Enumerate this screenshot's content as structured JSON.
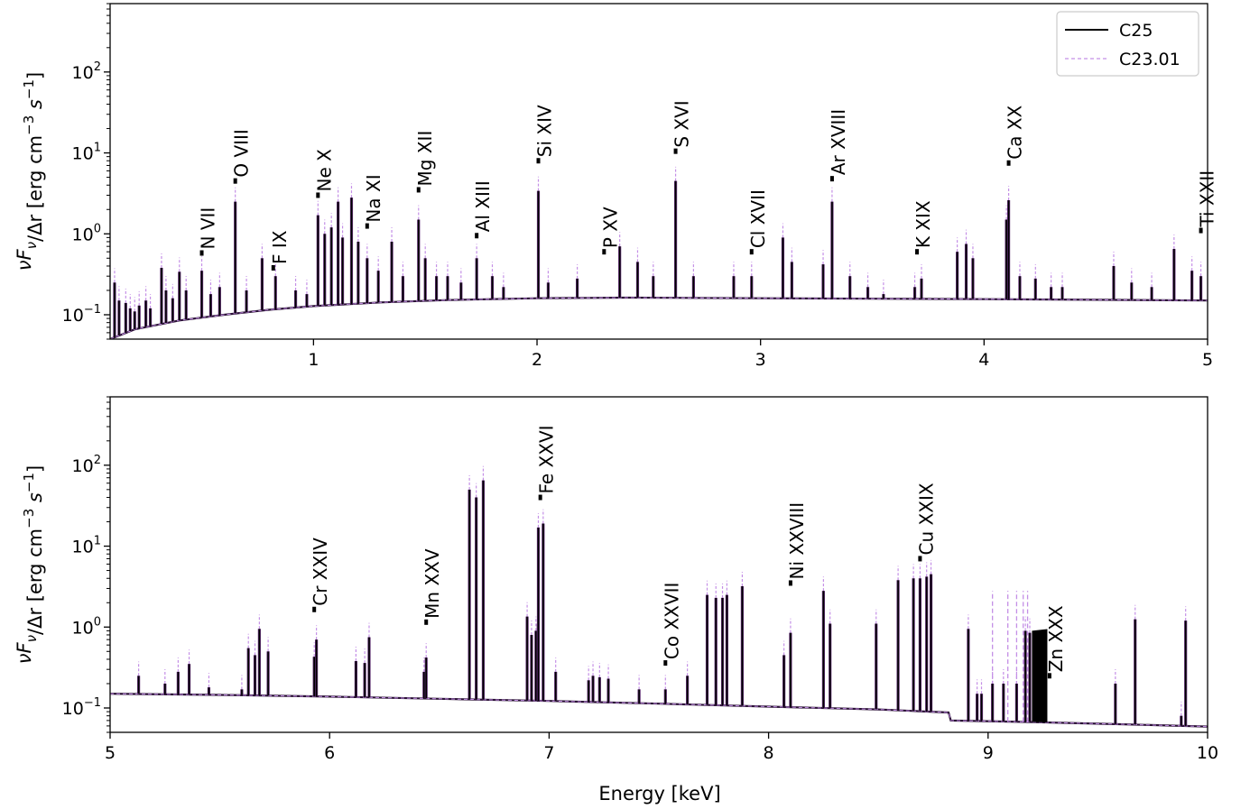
{
  "chart_data": [
    {
      "type": "line",
      "panel": "top",
      "xlabel": "",
      "ylabel_main": "νF",
      "ylabel_sub": "ν",
      "ylabel_rest": "/Δr [erg cm",
      "ylabel_exp1": "−3",
      "ylabel_mid": " s",
      "ylabel_exp2": "−1",
      "ylabel_end": "]",
      "xlim": [
        0.09,
        5.0
      ],
      "ylim": [
        0.05,
        700
      ],
      "yscale": "log",
      "grid": false,
      "xticks": [
        1,
        2,
        3,
        4,
        5
      ],
      "xtick_labels": [
        "1",
        "2",
        "3",
        "4",
        "5"
      ],
      "ytick_exponents": [
        -1,
        0,
        1,
        2
      ],
      "ytick_labels": [
        "10",
        "10",
        "10",
        "10"
      ],
      "ytick_label_exps": [
        "−1",
        "0",
        "1",
        "2"
      ],
      "legend": {
        "placement": "top-right",
        "entries": [
          {
            "name": "C25",
            "color": "#000000",
            "style": "solid"
          },
          {
            "name": "C23.01",
            "color": "#c48fe6",
            "style": "dashed"
          }
        ]
      },
      "continuum": [
        [
          0.09,
          0.05
        ],
        [
          0.2,
          0.066
        ],
        [
          0.4,
          0.085
        ],
        [
          0.6,
          0.1
        ],
        [
          0.8,
          0.115
        ],
        [
          1.0,
          0.128
        ],
        [
          1.3,
          0.142
        ],
        [
          1.6,
          0.152
        ],
        [
          2.0,
          0.16
        ],
        [
          2.4,
          0.163
        ],
        [
          2.6,
          0.162
        ],
        [
          3.0,
          0.16
        ],
        [
          3.5,
          0.158
        ],
        [
          4.0,
          0.156
        ],
        [
          4.5,
          0.153
        ],
        [
          5.0,
          0.15
        ]
      ],
      "lines": [
        [
          0.11,
          0.25
        ],
        [
          0.13,
          0.15
        ],
        [
          0.16,
          0.14
        ],
        [
          0.18,
          0.12
        ],
        [
          0.2,
          0.11
        ],
        [
          0.22,
          0.13
        ],
        [
          0.25,
          0.15
        ],
        [
          0.27,
          0.12
        ],
        [
          0.32,
          0.38
        ],
        [
          0.34,
          0.2
        ],
        [
          0.37,
          0.16
        ],
        [
          0.4,
          0.34
        ],
        [
          0.43,
          0.2
        ],
        [
          0.5,
          0.35
        ],
        [
          0.54,
          0.18
        ],
        [
          0.58,
          0.22
        ],
        [
          0.65,
          2.5
        ],
        [
          0.7,
          0.2
        ],
        [
          0.77,
          0.5
        ],
        [
          0.83,
          0.3
        ],
        [
          0.92,
          0.2
        ],
        [
          0.97,
          0.18
        ],
        [
          1.02,
          1.7
        ],
        [
          1.05,
          1.0
        ],
        [
          1.08,
          1.2
        ],
        [
          1.11,
          2.5
        ],
        [
          1.13,
          0.9
        ],
        [
          1.17,
          2.8
        ],
        [
          1.2,
          0.8
        ],
        [
          1.24,
          0.5
        ],
        [
          1.29,
          0.35
        ],
        [
          1.35,
          0.8
        ],
        [
          1.4,
          0.3
        ],
        [
          1.47,
          1.5
        ],
        [
          1.5,
          0.5
        ],
        [
          1.55,
          0.3
        ],
        [
          1.6,
          0.3
        ],
        [
          1.66,
          0.25
        ],
        [
          1.73,
          0.5
        ],
        [
          1.8,
          0.3
        ],
        [
          1.85,
          0.22
        ],
        [
          2.006,
          3.4
        ],
        [
          2.05,
          0.25
        ],
        [
          2.18,
          0.28
        ],
        [
          2.37,
          0.7
        ],
        [
          2.45,
          0.45
        ],
        [
          2.52,
          0.3
        ],
        [
          2.62,
          4.5
        ],
        [
          2.7,
          0.3
        ],
        [
          2.88,
          0.3
        ],
        [
          2.96,
          0.3
        ],
        [
          3.1,
          0.9
        ],
        [
          3.14,
          0.45
        ],
        [
          3.28,
          0.42
        ],
        [
          3.32,
          2.5
        ],
        [
          3.4,
          0.3
        ],
        [
          3.48,
          0.22
        ],
        [
          3.55,
          0.18
        ],
        [
          3.69,
          0.22
        ],
        [
          3.72,
          0.28
        ],
        [
          3.88,
          0.6
        ],
        [
          3.92,
          0.75
        ],
        [
          3.95,
          0.5
        ],
        [
          4.1,
          1.5
        ],
        [
          4.11,
          2.6
        ],
        [
          4.16,
          0.3
        ],
        [
          4.23,
          0.28
        ],
        [
          4.3,
          0.22
        ],
        [
          4.35,
          0.22
        ],
        [
          4.58,
          0.4
        ],
        [
          4.66,
          0.25
        ],
        [
          4.75,
          0.22
        ],
        [
          4.85,
          0.65
        ],
        [
          4.93,
          0.35
        ],
        [
          4.97,
          0.3
        ]
      ],
      "ions": [
        {
          "x": 0.5,
          "y": 0.58,
          "label": "N VII"
        },
        {
          "x": 0.65,
          "y": 4.5,
          "label": "O VIII"
        },
        {
          "x": 0.82,
          "y": 0.38,
          "label": "F IX"
        },
        {
          "x": 1.02,
          "y": 3.0,
          "label": "Ne X"
        },
        {
          "x": 1.24,
          "y": 1.25,
          "label": "Na XI"
        },
        {
          "x": 1.47,
          "y": 3.5,
          "label": "Mg XII"
        },
        {
          "x": 1.73,
          "y": 0.95,
          "label": "Al XIII"
        },
        {
          "x": 2.006,
          "y": 8.0,
          "label": "Si XIV"
        },
        {
          "x": 2.3,
          "y": 0.6,
          "label": "P XV"
        },
        {
          "x": 2.62,
          "y": 10.5,
          "label": "S XVI"
        },
        {
          "x": 2.96,
          "y": 0.6,
          "label": "Cl XVII"
        },
        {
          "x": 3.32,
          "y": 4.8,
          "label": "Ar XVIII"
        },
        {
          "x": 3.7,
          "y": 0.6,
          "label": "K XIX"
        },
        {
          "x": 4.11,
          "y": 7.5,
          "label": "Ca XX"
        },
        {
          "x": 4.97,
          "y": 1.1,
          "label": "Ti XXII"
        }
      ]
    },
    {
      "type": "line",
      "panel": "bottom",
      "xlabel": "Energy [keV]",
      "ylabel_main": "νF",
      "ylabel_sub": "ν",
      "ylabel_rest": "/Δr [erg cm",
      "ylabel_exp1": "−3",
      "ylabel_mid": " s",
      "ylabel_exp2": "−1",
      "ylabel_end": "]",
      "xlim": [
        5.0,
        10.0
      ],
      "ylim": [
        0.05,
        700
      ],
      "yscale": "log",
      "grid": false,
      "xticks": [
        5,
        6,
        7,
        8,
        9,
        10
      ],
      "xtick_labels": [
        "5",
        "6",
        "7",
        "8",
        "9",
        "10"
      ],
      "ytick_exponents": [
        -1,
        0,
        1,
        2
      ],
      "ytick_labels": [
        "10",
        "10",
        "10",
        "10"
      ],
      "ytick_label_exps": [
        "−1",
        "0",
        "1",
        "2"
      ],
      "continuum": [
        [
          5.0,
          0.15
        ],
        [
          5.5,
          0.145
        ],
        [
          6.0,
          0.138
        ],
        [
          6.5,
          0.13
        ],
        [
          7.0,
          0.122
        ],
        [
          7.5,
          0.113
        ],
        [
          8.0,
          0.104
        ],
        [
          8.5,
          0.096
        ],
        [
          8.65,
          0.092
        ],
        [
          8.82,
          0.088
        ],
        [
          8.83,
          0.07
        ],
        [
          9.2,
          0.067
        ],
        [
          9.6,
          0.063
        ],
        [
          10.0,
          0.059
        ]
      ],
      "lines": [
        [
          5.13,
          0.25
        ],
        [
          5.25,
          0.2
        ],
        [
          5.31,
          0.28
        ],
        [
          5.36,
          0.35
        ],
        [
          5.45,
          0.18
        ],
        [
          5.6,
          0.17
        ],
        [
          5.63,
          0.55
        ],
        [
          5.66,
          0.45
        ],
        [
          5.68,
          0.95
        ],
        [
          5.72,
          0.5
        ],
        [
          5.93,
          0.43
        ],
        [
          5.94,
          0.7
        ],
        [
          6.12,
          0.38
        ],
        [
          6.16,
          0.36
        ],
        [
          6.18,
          0.75
        ],
        [
          6.43,
          0.28
        ],
        [
          6.44,
          0.42
        ],
        [
          6.637,
          50
        ],
        [
          6.668,
          40
        ],
        [
          6.7,
          65
        ],
        [
          6.9,
          1.35
        ],
        [
          6.92,
          0.8
        ],
        [
          6.94,
          0.9
        ],
        [
          6.95,
          1.1
        ],
        [
          6.951,
          17
        ],
        [
          6.973,
          19
        ],
        [
          7.03,
          0.28
        ],
        [
          7.18,
          0.22
        ],
        [
          7.2,
          0.25
        ],
        [
          7.23,
          0.24
        ],
        [
          7.27,
          0.23
        ],
        [
          7.41,
          0.17
        ],
        [
          7.53,
          0.17
        ],
        [
          7.63,
          0.25
        ],
        [
          7.72,
          2.5
        ],
        [
          7.76,
          2.3
        ],
        [
          7.79,
          2.3
        ],
        [
          7.81,
          2.5
        ],
        [
          7.88,
          3.2
        ],
        [
          8.07,
          0.45
        ],
        [
          8.1,
          0.85
        ],
        [
          8.25,
          2.8
        ],
        [
          8.28,
          1.1
        ],
        [
          8.49,
          1.1
        ],
        [
          8.59,
          3.8
        ],
        [
          8.66,
          4.0
        ],
        [
          8.69,
          4.0
        ],
        [
          8.72,
          4.2
        ],
        [
          8.74,
          4.5
        ],
        [
          8.91,
          0.95
        ],
        [
          8.95,
          0.15
        ],
        [
          8.97,
          0.15
        ],
        [
          9.02,
          0.2
        ],
        [
          9.07,
          0.2
        ],
        [
          9.13,
          0.2
        ],
        [
          9.17,
          0.9
        ],
        [
          9.19,
          0.85
        ],
        [
          9.58,
          0.2
        ],
        [
          9.67,
          1.25
        ],
        [
          9.88,
          0.08
        ],
        [
          9.9,
          1.2
        ]
      ],
      "dashed_spikes": [
        [
          9.02,
          2.8
        ],
        [
          9.09,
          2.8
        ],
        [
          9.13,
          2.8
        ],
        [
          9.16,
          2.8
        ],
        [
          9.18,
          2.8
        ]
      ],
      "dense_band": [
        9.2,
        9.27,
        0.9
      ],
      "ions": [
        {
          "x": 5.93,
          "y": 1.65,
          "label": "Cr XXIV"
        },
        {
          "x": 6.44,
          "y": 1.15,
          "label": "Mn XXV"
        },
        {
          "x": 6.96,
          "y": 40,
          "label": "Fe XXVI"
        },
        {
          "x": 7.53,
          "y": 0.36,
          "label": "Co XXVII"
        },
        {
          "x": 8.1,
          "y": 3.5,
          "label": "Ni XXVIII"
        },
        {
          "x": 8.69,
          "y": 7.0,
          "label": "Cu XXIX"
        },
        {
          "x": 9.28,
          "y": 0.25,
          "label": "Zn XXX"
        }
      ]
    }
  ]
}
